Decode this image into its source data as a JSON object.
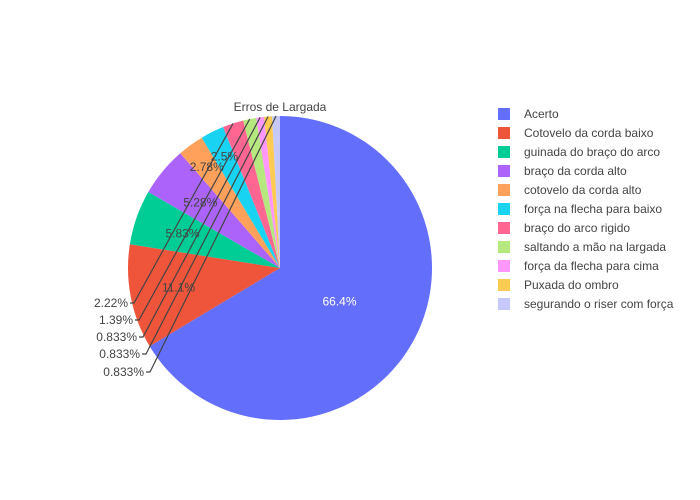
{
  "chart_data": {
    "type": "pie",
    "title": "Erros de Largada",
    "legend_placement": "right",
    "slices": [
      {
        "label": "Acerto",
        "percent": 66.4,
        "text": "66.4%",
        "color": "#636efa"
      },
      {
        "label": "Cotovelo da corda baixo",
        "percent": 11.1,
        "text": "11.1%",
        "color": "#EF553B"
      },
      {
        "label": "guinada do braço do arco",
        "percent": 5.83,
        "text": "5.83%",
        "color": "#00cc96"
      },
      {
        "label": "braço da corda alto",
        "percent": 5.28,
        "text": "5.28%",
        "color": "#ab63fa"
      },
      {
        "label": "cotovelo da corda alto",
        "percent": 2.78,
        "text": "2.78%",
        "color": "#FFA15A"
      },
      {
        "label": "força na flecha para baixo",
        "percent": 2.5,
        "text": "2.5%",
        "color": "#19d3f3"
      },
      {
        "label": "braço do arco rigido",
        "percent": 2.22,
        "text": "2.22%",
        "color": "#FF6692"
      },
      {
        "label": "saltando a mão na largada",
        "percent": 1.39,
        "text": "1.39%",
        "color": "#B6E880"
      },
      {
        "label": "força da flecha para cima",
        "percent": 0.833,
        "text": "0.833%",
        "color": "#FF97FF"
      },
      {
        "label": "Puxada do ombro",
        "percent": 0.833,
        "text": "0.833%",
        "color": "#FECB52"
      },
      {
        "label": "segurando o riser com força",
        "percent": 0.833,
        "text": "0.833%",
        "color": "#c6c9f7"
      }
    ]
  }
}
